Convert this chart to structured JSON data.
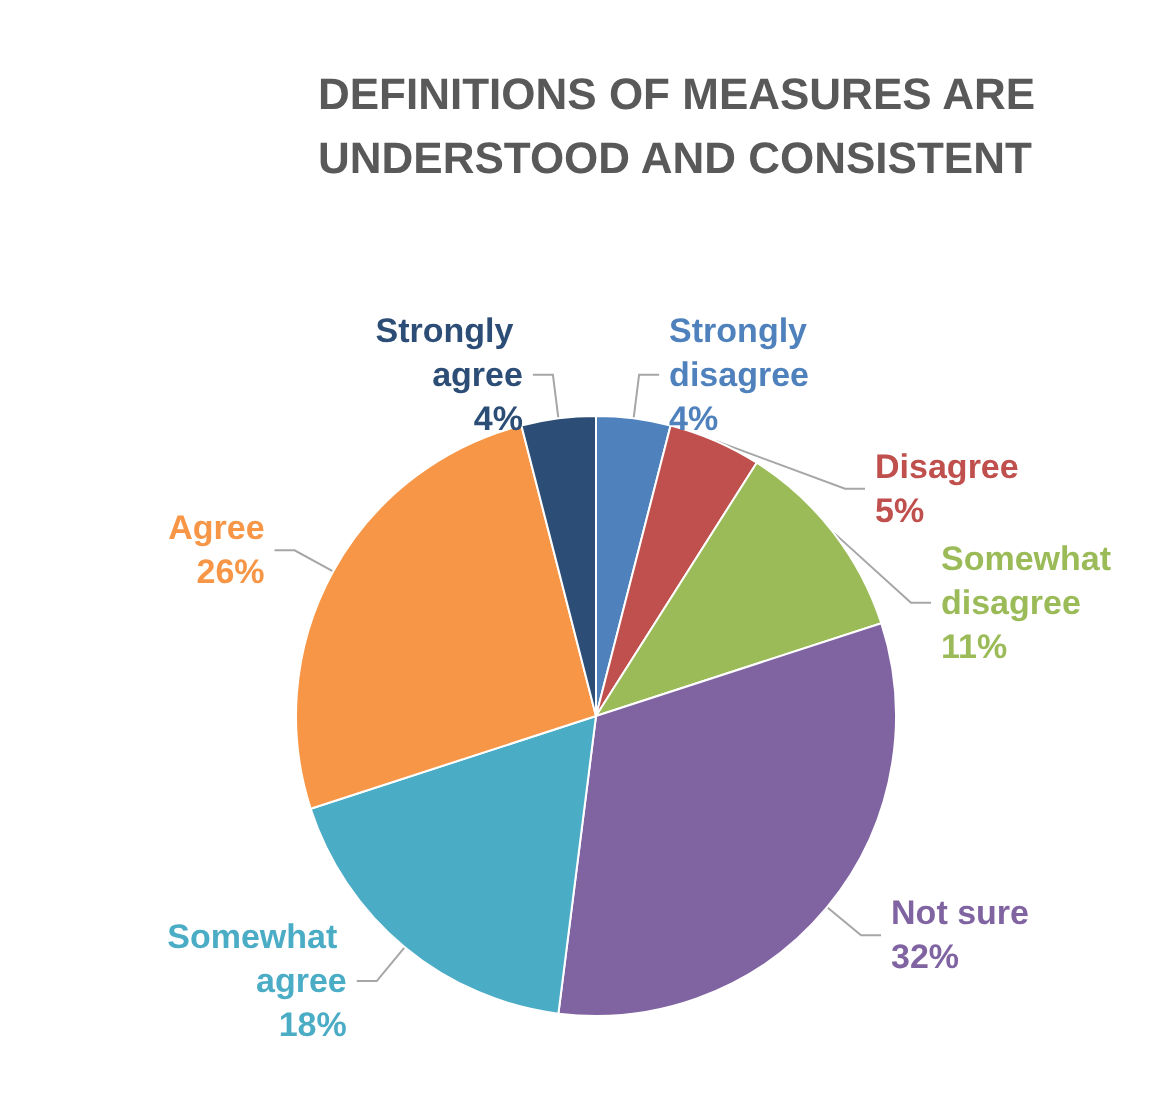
{
  "chart_data": {
    "type": "pie",
    "title": "DEFINITIONS OF MEASURES ARE UNDERSTOOD AND CONSISTENT",
    "categories": [
      "Strongly disagree",
      "Disagree",
      "Somewhat disagree",
      "Not sure",
      "Somewhat agree",
      "Agree",
      "Strongly agree"
    ],
    "values": [
      4,
      5,
      11,
      32,
      18,
      26,
      4
    ],
    "value_labels": [
      "4%",
      "5%",
      "11%",
      "32%",
      "18%",
      "26%",
      "4%"
    ],
    "colors": [
      "#4f81bd",
      "#c0504d",
      "#9bbb59",
      "#8064a2",
      "#4bacc6",
      "#f79646",
      "#2c4d75"
    ],
    "legend": false
  }
}
